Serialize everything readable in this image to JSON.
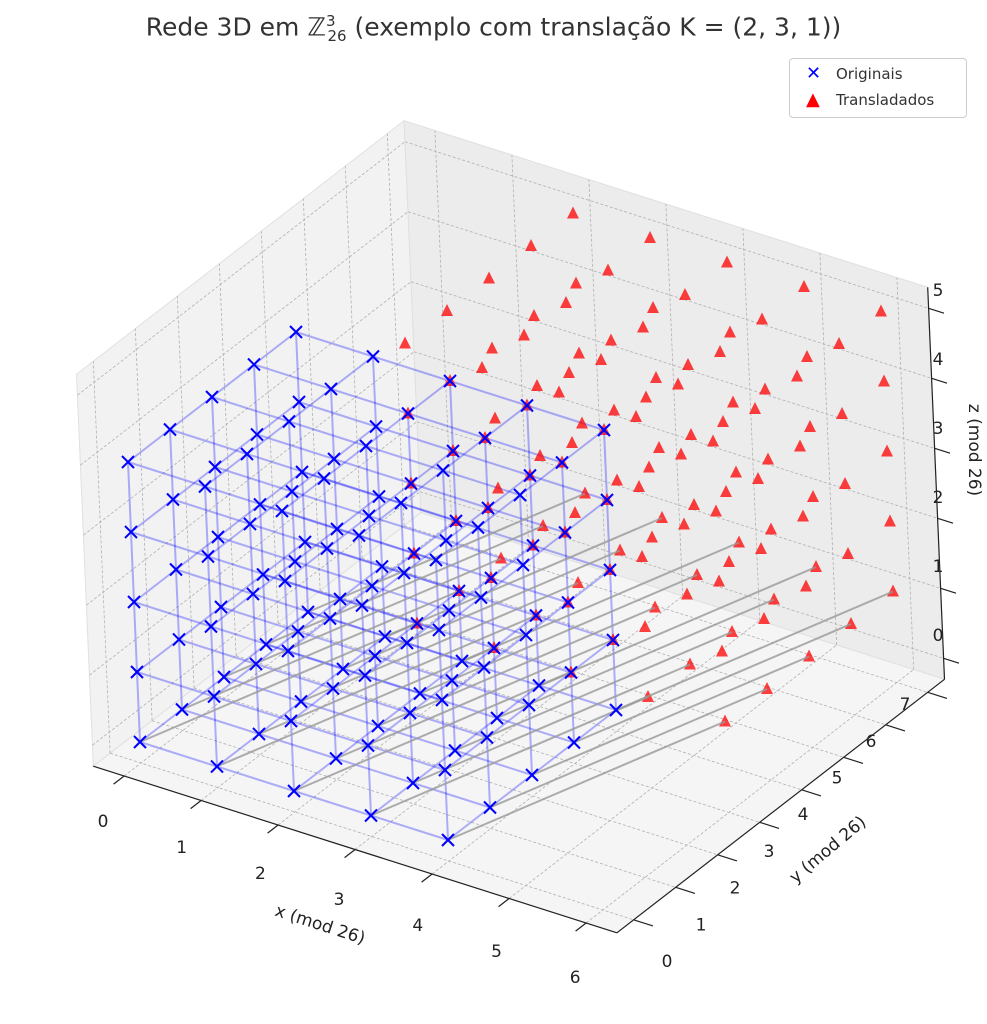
{
  "chart_data": {
    "type": "scatter3d",
    "title_prefix": "Rede 3D em ",
    "title_set": "ℤ",
    "title_sup": "3",
    "title_sub": "26",
    "title_suffix": " (exemplo com translação K = (2, 3, 1))",
    "xlabel": "x (mod 26)",
    "ylabel": "y (mod 26)",
    "zlabel": "z (mod 26)",
    "xticks": [
      0,
      1,
      2,
      3,
      4,
      5,
      6
    ],
    "yticks": [
      0,
      1,
      2,
      3,
      4,
      5,
      6,
      7
    ],
    "zticks": [
      0,
      1,
      2,
      3,
      4,
      5
    ],
    "xlim": [
      -0.4,
      6.4
    ],
    "ylim": [
      -0.4,
      7.4
    ],
    "zlim": [
      -0.3,
      5.3
    ],
    "original_grid": {
      "x": [
        0,
        1,
        2,
        3,
        4
      ],
      "y": [
        0,
        1,
        2,
        3,
        4
      ],
      "z": [
        0,
        1,
        2,
        3,
        4
      ]
    },
    "translation": [
      2,
      3,
      1
    ],
    "arrows_from_layer_z": 0,
    "legend": [
      {
        "label": "Originais",
        "marker": "x",
        "color": "#0000ff"
      },
      {
        "label": "Transladados",
        "marker": "^",
        "color": "#ff0000"
      }
    ],
    "legend_position": "top-right",
    "grid": true
  }
}
